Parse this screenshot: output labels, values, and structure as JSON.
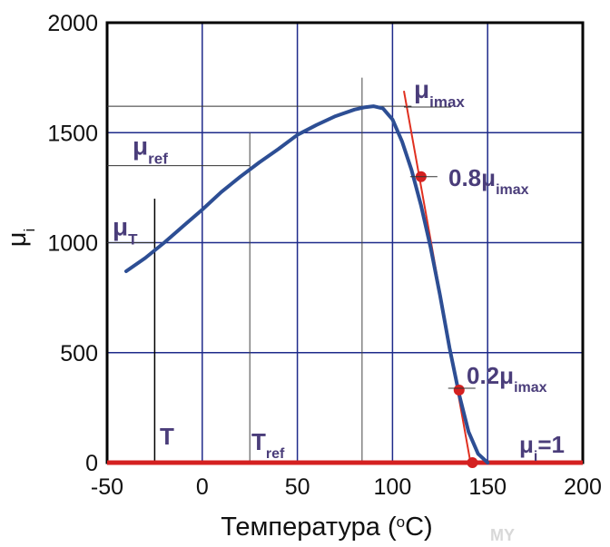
{
  "chart_data": {
    "type": "line",
    "title": "",
    "xlabel_main": "Температура (",
    "xlabel_sup": "o",
    "xlabel_tail": "C)",
    "ylabel_main": "μ",
    "ylabel_sub": "i",
    "xlim": [
      -50,
      200
    ],
    "ylim": [
      0,
      2000
    ],
    "x_ticks": [
      -50,
      0,
      50,
      100,
      150,
      200
    ],
    "y_ticks": [
      0,
      500,
      1000,
      1500,
      2000
    ],
    "grid": true,
    "colors": {
      "curve": "#2d4e94",
      "grid": "#1e2a8a",
      "tangent": "#e03020",
      "baseline": "#d42020",
      "marker": "#d42020",
      "annotation": "#4a3d7a"
    },
    "series": [
      {
        "x": [
          -40,
          -30,
          -20,
          -10,
          0,
          10,
          20,
          30,
          40,
          50,
          60,
          70,
          80,
          85,
          90,
          95,
          100,
          105,
          110,
          115,
          120,
          125,
          130,
          135,
          140,
          145,
          150
        ],
        "y": [
          870,
          930,
          1000,
          1075,
          1150,
          1230,
          1300,
          1365,
          1425,
          1490,
          1535,
          1575,
          1605,
          1615,
          1620,
          1610,
          1560,
          1460,
          1330,
          1170,
          980,
          760,
          520,
          310,
          140,
          40,
          0
        ]
      }
    ],
    "tangent_line": {
      "x": [
        106,
        141
      ],
      "y": [
        1690,
        0
      ]
    },
    "baseline": {
      "x": [
        -50,
        200
      ],
      "y": 0
    },
    "markers": [
      {
        "x": 115,
        "y": 1300,
        "label_main": "0.8μ",
        "label_sub": "imax"
      },
      {
        "x": 135,
        "y": 330,
        "label_main": "0.2μ",
        "label_sub": "imax"
      },
      {
        "x": 142,
        "y": 0
      }
    ],
    "reference_lines": [
      {
        "x": -25,
        "y_top": 1200,
        "label": "T"
      },
      {
        "x": 25,
        "y_top": 1500,
        "label_main": "T",
        "label_sub": "ref"
      },
      {
        "x": 84,
        "y_top": 1750
      }
    ],
    "level_lines": [
      {
        "y": 1000,
        "x_end": -25,
        "label_main": "μ",
        "label_sub": "T"
      },
      {
        "y": 1350,
        "x_end": 25,
        "label_main": "μ",
        "label_sub": "ref"
      },
      {
        "y": 1620,
        "x_end": 110,
        "label_main": "μ",
        "label_sub": "imax"
      }
    ],
    "mu_i_one_label": {
      "main": "μ",
      "sub": "i",
      "tail": "=1"
    },
    "watermark": "MY"
  }
}
